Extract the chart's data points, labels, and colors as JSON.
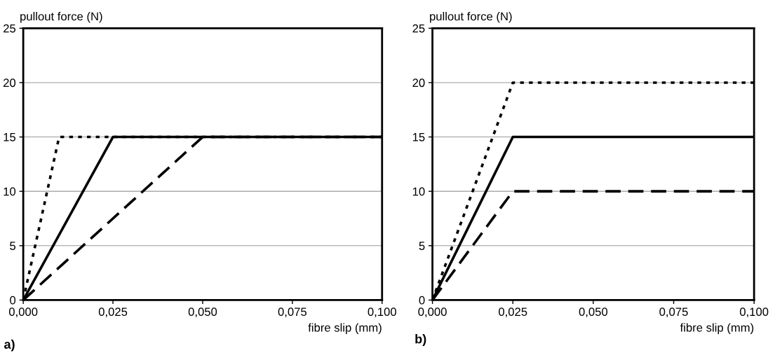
{
  "chart_data": [
    {
      "type": "line",
      "ylabel": "pullout force (N)",
      "xlabel": "fibre slip (mm)",
      "annotations": [
        "a)"
      ],
      "grid": "y",
      "xlim": [
        0,
        0.1
      ],
      "ylim": [
        0,
        25
      ],
      "xticks": [
        {
          "value": 0,
          "label": "0,000"
        },
        {
          "value": 0.025,
          "label": "0,025"
        },
        {
          "value": 0.05,
          "label": "0,050"
        },
        {
          "value": 0.075,
          "label": "0,075"
        },
        {
          "value": 0.1,
          "label": "0,100"
        }
      ],
      "yticks": [
        0,
        5,
        10,
        15,
        20,
        25
      ],
      "marker": "none",
      "series": [
        {
          "color": "#000000",
          "line_style": "dotted",
          "x": [
            0,
            0.01,
            0.1
          ],
          "values": [
            0,
            15,
            15
          ]
        },
        {
          "color": "#000000",
          "line_style": "solid",
          "x": [
            0,
            0.025,
            0.1
          ],
          "values": [
            0,
            15,
            15
          ]
        },
        {
          "color": "#000000",
          "line_style": "dashed",
          "x": [
            0,
            0.05,
            0.1
          ],
          "values": [
            0,
            15,
            15
          ]
        }
      ]
    },
    {
      "type": "line",
      "ylabel": "pullout force (N)",
      "xlabel": "fibre slip (mm)",
      "annotations": [
        "b)"
      ],
      "grid": "y",
      "xlim": [
        0,
        0.1
      ],
      "ylim": [
        0,
        25
      ],
      "xticks": [
        {
          "value": 0,
          "label": "0,000"
        },
        {
          "value": 0.025,
          "label": "0,025"
        },
        {
          "value": 0.05,
          "label": "0,050"
        },
        {
          "value": 0.075,
          "label": "0,075"
        },
        {
          "value": 0.1,
          "label": "0,100"
        }
      ],
      "yticks": [
        0,
        5,
        10,
        15,
        20,
        25
      ],
      "marker": "none",
      "series": [
        {
          "color": "#000000",
          "line_style": "dotted",
          "x": [
            0,
            0.025,
            0.1
          ],
          "values": [
            0,
            20,
            20
          ]
        },
        {
          "color": "#000000",
          "line_style": "solid",
          "x": [
            0,
            0.025,
            0.1
          ],
          "values": [
            0,
            15,
            15
          ]
        },
        {
          "color": "#000000",
          "line_style": "dashed",
          "x": [
            0,
            0.025,
            0.1
          ],
          "values": [
            0,
            10,
            10
          ]
        }
      ]
    }
  ]
}
